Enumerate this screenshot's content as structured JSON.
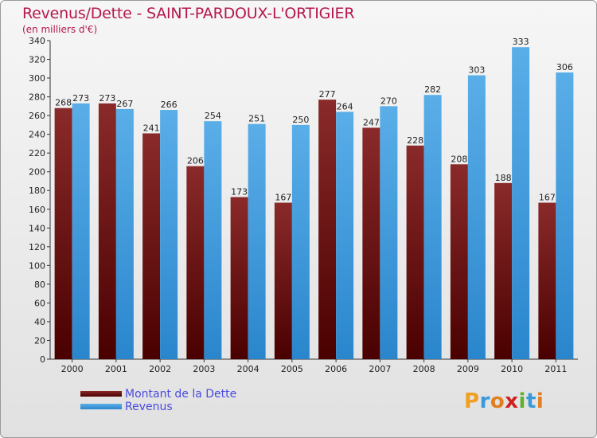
{
  "title": "Revenus/Dette - SAINT-PARDOUX-L'ORTIGIER",
  "subtitle": "(en milliers d'€)",
  "legend": {
    "dette_label": "Montant de la Dette",
    "revenus_label": "Revenus"
  },
  "logo": {
    "letters": [
      "P",
      "r",
      "o",
      "x",
      "i",
      "t",
      "i"
    ]
  },
  "colors": {
    "dette": "#6b0b0b",
    "revenus": "#3d9fe0",
    "title": "#b5174e"
  },
  "chart_data": {
    "type": "bar",
    "categories": [
      "2000",
      "2001",
      "2002",
      "2003",
      "2004",
      "2005",
      "2006",
      "2007",
      "2008",
      "2009",
      "2010",
      "2011"
    ],
    "series": [
      {
        "name": "Montant de la Dette",
        "values": [
          268,
          273,
          241,
          206,
          173,
          167,
          277,
          247,
          228,
          208,
          188,
          167
        ]
      },
      {
        "name": "Revenus",
        "values": [
          273,
          267,
          266,
          254,
          251,
          250,
          264,
          270,
          282,
          303,
          333,
          306
        ]
      }
    ],
    "title": "Revenus/Dette - SAINT-PARDOUX-L'ORTIGIER",
    "ylabel": "(en milliers d'€)",
    "xlabel": "",
    "ylim": [
      0,
      340
    ],
    "ytick_step": 20,
    "grid": false,
    "legend_position": "bottom-left"
  }
}
